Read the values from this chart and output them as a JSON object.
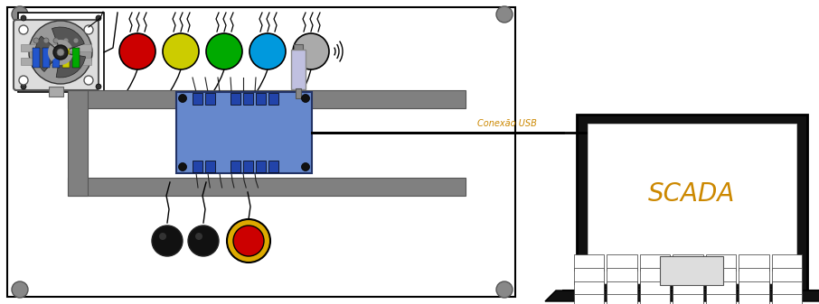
{
  "fig_width": 9.06,
  "fig_height": 3.37,
  "dpi": 100,
  "bg_color": "#ffffff",
  "scada_text": "SCADA",
  "usb_text": "Conexão USB",
  "scada_color": "#cc8800",
  "lamp_colors": [
    "#cc0000",
    "#cccc00",
    "#00aa00",
    "#0099dd",
    "#aaaaaa"
  ]
}
